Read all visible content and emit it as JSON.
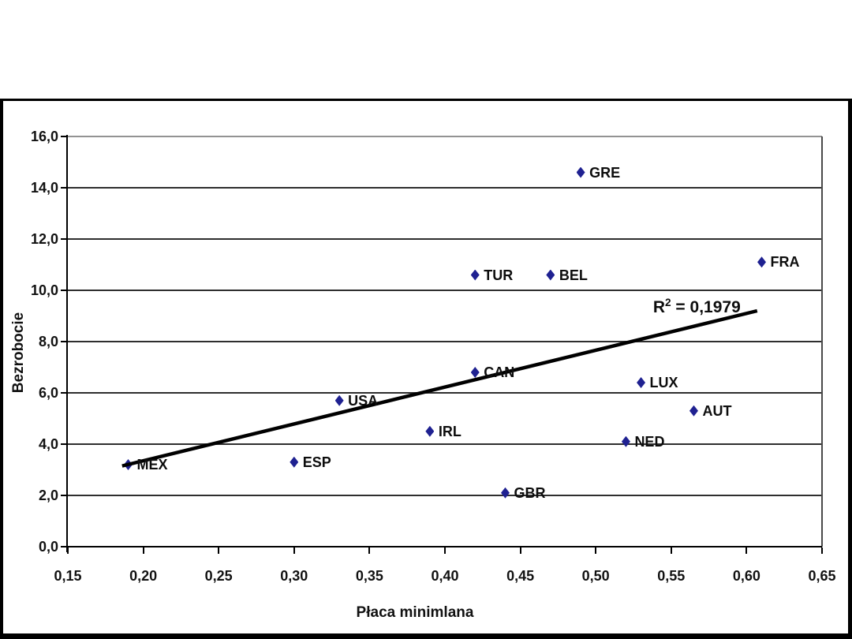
{
  "colors": {
    "marker": "#1f2191",
    "trendline": "#000000",
    "gridline": "#2e2e2e",
    "plot_top_border": "#939393"
  },
  "chart_data": {
    "type": "scatter",
    "title": "",
    "xlabel": "Płaca minimlana",
    "ylabel": "Bezrobocie",
    "xlim": [
      0.15,
      0.65
    ],
    "ylim": [
      0.0,
      16.0
    ],
    "grid": "horizontal",
    "legend": "none",
    "x_tick_labels": [
      "0,15",
      "0,20",
      "0,25",
      "0,30",
      "0,35",
      "0,40",
      "0,45",
      "0,50",
      "0,55",
      "0,60",
      "0,65"
    ],
    "x_tick_values": [
      0.15,
      0.2,
      0.25,
      0.3,
      0.35,
      0.4,
      0.45,
      0.5,
      0.55,
      0.6,
      0.65
    ],
    "y_tick_labels": [
      "0,0",
      "2,0",
      "4,0",
      "6,0",
      "8,0",
      "10,0",
      "12,0",
      "14,0",
      "16,0"
    ],
    "y_tick_values": [
      0,
      2,
      4,
      6,
      8,
      10,
      12,
      14,
      16
    ],
    "points": [
      {
        "label": "MEX",
        "x": 0.19,
        "y": 3.2
      },
      {
        "label": "ESP",
        "x": 0.3,
        "y": 3.3
      },
      {
        "label": "USA",
        "x": 0.33,
        "y": 5.7
      },
      {
        "label": "IRL",
        "x": 0.39,
        "y": 4.5
      },
      {
        "label": "TUR",
        "x": 0.42,
        "y": 10.6
      },
      {
        "label": "CAN",
        "x": 0.42,
        "y": 6.8
      },
      {
        "label": "GBR",
        "x": 0.44,
        "y": 2.1
      },
      {
        "label": "BEL",
        "x": 0.47,
        "y": 10.6
      },
      {
        "label": "GRE",
        "x": 0.49,
        "y": 14.6
      },
      {
        "label": "NED",
        "x": 0.52,
        "y": 4.1
      },
      {
        "label": "LUX",
        "x": 0.53,
        "y": 6.4
      },
      {
        "label": "AUT",
        "x": 0.565,
        "y": 5.3
      },
      {
        "label": "FRA",
        "x": 0.61,
        "y": 11.1
      }
    ],
    "trendline": {
      "x1": 0.186,
      "y1": 3.15,
      "x2": 0.607,
      "y2": 9.2
    },
    "annotation": {
      "prefix": "R",
      "sup": "2",
      "rest": " = 0,1979",
      "x": 0.567,
      "y": 9.35
    }
  }
}
